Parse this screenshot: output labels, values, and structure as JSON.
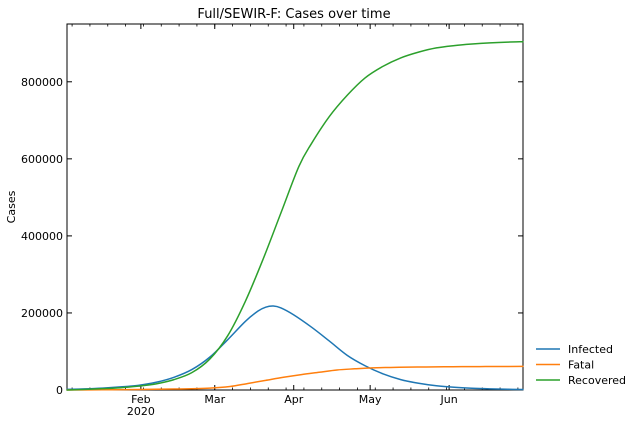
{
  "chart_data": {
    "type": "line",
    "title": "Full/SEWIR-F: Cases over time",
    "xlabel": "",
    "ylabel": "Cases",
    "xlim": [
      "2020-01-03",
      "2020-06-30"
    ],
    "ylim": [
      0,
      950000
    ],
    "grid": false,
    "legend_position": "outside-right-bottom",
    "x_ticks": [
      {
        "date": "2020-02-01",
        "label": "Feb",
        "sublabel": "2020"
      },
      {
        "date": "2020-03-01",
        "label": "Mar",
        "sublabel": ""
      },
      {
        "date": "2020-04-01",
        "label": "Apr",
        "sublabel": ""
      },
      {
        "date": "2020-05-01",
        "label": "May",
        "sublabel": ""
      },
      {
        "date": "2020-06-01",
        "label": "Jun",
        "sublabel": ""
      }
    ],
    "y_ticks": [
      {
        "value": 0,
        "label": "0"
      },
      {
        "value": 200000,
        "label": "200000"
      },
      {
        "value": 400000,
        "label": "400000"
      },
      {
        "value": 600000,
        "label": "600000"
      },
      {
        "value": 800000,
        "label": "800000"
      }
    ],
    "series": [
      {
        "name": "Infected",
        "color": "#1f77b4",
        "points": [
          [
            "2020-01-03",
            1500
          ],
          [
            "2020-01-10",
            3000
          ],
          [
            "2020-01-17",
            5000
          ],
          [
            "2020-01-24",
            8000
          ],
          [
            "2020-01-31",
            12000
          ],
          [
            "2020-02-07",
            20000
          ],
          [
            "2020-02-14",
            33000
          ],
          [
            "2020-02-21",
            53000
          ],
          [
            "2020-02-28",
            85000
          ],
          [
            "2020-03-06",
            130000
          ],
          [
            "2020-03-13",
            178000
          ],
          [
            "2020-03-18",
            205000
          ],
          [
            "2020-03-21",
            215000
          ],
          [
            "2020-03-24",
            218000
          ],
          [
            "2020-03-27",
            213000
          ],
          [
            "2020-04-01",
            195000
          ],
          [
            "2020-04-08",
            163000
          ],
          [
            "2020-04-15",
            127000
          ],
          [
            "2020-04-22",
            90000
          ],
          [
            "2020-04-29",
            63000
          ],
          [
            "2020-05-06",
            42000
          ],
          [
            "2020-05-13",
            27000
          ],
          [
            "2020-05-20",
            17500
          ],
          [
            "2020-05-27",
            11000
          ],
          [
            "2020-06-03",
            7000
          ],
          [
            "2020-06-10",
            4500
          ],
          [
            "2020-06-17",
            3000
          ],
          [
            "2020-06-24",
            2000
          ],
          [
            "2020-06-30",
            1200
          ]
        ]
      },
      {
        "name": "Fatal",
        "color": "#ff7f0e",
        "points": [
          [
            "2020-01-03",
            0
          ],
          [
            "2020-01-17",
            500
          ],
          [
            "2020-01-31",
            1200
          ],
          [
            "2020-02-14",
            2500
          ],
          [
            "2020-02-28",
            5000
          ],
          [
            "2020-03-07",
            9000
          ],
          [
            "2020-03-14",
            17000
          ],
          [
            "2020-03-21",
            25000
          ],
          [
            "2020-03-28",
            33000
          ],
          [
            "2020-04-04",
            40000
          ],
          [
            "2020-04-11",
            46000
          ],
          [
            "2020-04-18",
            52000
          ],
          [
            "2020-04-25",
            55000
          ],
          [
            "2020-05-02",
            57500
          ],
          [
            "2020-05-09",
            58500
          ],
          [
            "2020-05-16",
            59300
          ],
          [
            "2020-05-23",
            59800
          ],
          [
            "2020-05-30",
            60300
          ],
          [
            "2020-06-06",
            60600
          ],
          [
            "2020-06-13",
            60800
          ],
          [
            "2020-06-20",
            61000
          ],
          [
            "2020-06-30",
            61200
          ]
        ]
      },
      {
        "name": "Recovered",
        "color": "#2ca02c",
        "points": [
          [
            "2020-01-03",
            0
          ],
          [
            "2020-01-10",
            1500
          ],
          [
            "2020-01-17",
            3500
          ],
          [
            "2020-01-24",
            6000
          ],
          [
            "2020-01-31",
            10000
          ],
          [
            "2020-02-07",
            16000
          ],
          [
            "2020-02-14",
            27000
          ],
          [
            "2020-02-21",
            45000
          ],
          [
            "2020-02-28",
            80000
          ],
          [
            "2020-03-06",
            140000
          ],
          [
            "2020-03-13",
            230000
          ],
          [
            "2020-03-20",
            340000
          ],
          [
            "2020-03-27",
            460000
          ],
          [
            "2020-04-03",
            580000
          ],
          [
            "2020-04-08",
            640000
          ],
          [
            "2020-04-15",
            710000
          ],
          [
            "2020-04-22",
            765000
          ],
          [
            "2020-04-29",
            810000
          ],
          [
            "2020-05-06",
            840000
          ],
          [
            "2020-05-13",
            862000
          ],
          [
            "2020-05-20",
            877000
          ],
          [
            "2020-05-27",
            888000
          ],
          [
            "2020-06-03",
            894000
          ],
          [
            "2020-06-10",
            898000
          ],
          [
            "2020-06-17",
            901000
          ],
          [
            "2020-06-24",
            903000
          ],
          [
            "2020-06-30",
            904000
          ]
        ]
      }
    ]
  }
}
